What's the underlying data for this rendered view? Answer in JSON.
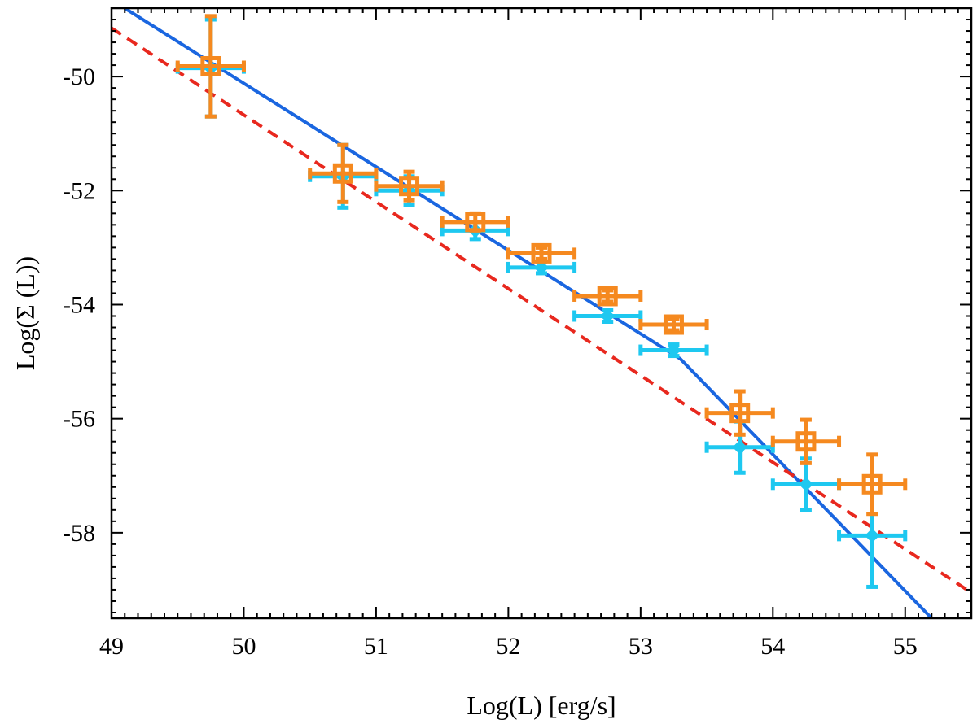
{
  "chart_data": {
    "type": "scatter",
    "title": "",
    "xlabel": "Log(L) [erg/s]",
    "ylabel": "Log(Σ (L))",
    "xlim": [
      49,
      55.5
    ],
    "ylim": [
      -59.5,
      -48.8
    ],
    "xticks": [
      "49",
      "50",
      "51",
      "52",
      "53",
      "54",
      "55"
    ],
    "yticks": [
      "-50",
      "-52",
      "-54",
      "-56",
      "-58"
    ],
    "grid": false,
    "colors": {
      "cyan_series": "#1ec8f0",
      "orange_series": "#f5891f",
      "blue_fit": "#1a66e0",
      "red_fit": "#e8281e"
    },
    "series": [
      {
        "marker": "diamond",
        "points": [
          {
            "x": 49.75,
            "y": -49.85,
            "xerr": 0.25,
            "yerr": 0.85
          },
          {
            "x": 50.75,
            "y": -51.75,
            "xerr": 0.25,
            "yerr": 0.55
          },
          {
            "x": 51.25,
            "y": -52.0,
            "xerr": 0.25,
            "yerr": 0.25
          },
          {
            "x": 51.75,
            "y": -52.7,
            "xerr": 0.25,
            "yerr": 0.15
          },
          {
            "x": 52.25,
            "y": -53.35,
            "xerr": 0.25,
            "yerr": 0.1
          },
          {
            "x": 52.75,
            "y": -54.2,
            "xerr": 0.25,
            "yerr": 0.1
          },
          {
            "x": 53.25,
            "y": -54.8,
            "xerr": 0.25,
            "yerr": 0.1
          },
          {
            "x": 53.75,
            "y": -56.5,
            "xerr": 0.25,
            "yerr": 0.45
          },
          {
            "x": 54.25,
            "y": -57.15,
            "xerr": 0.25,
            "yerr": 0.45
          },
          {
            "x": 54.75,
            "y": -58.05,
            "xerr": 0.25,
            "yerr": 0.9
          }
        ]
      },
      {
        "marker": "square",
        "points": [
          {
            "x": 49.75,
            "y": -49.82,
            "xerr": 0.25,
            "yerr": 0.88
          },
          {
            "x": 50.75,
            "y": -51.7,
            "xerr": 0.25,
            "yerr": 0.5
          },
          {
            "x": 51.25,
            "y": -51.92,
            "xerr": 0.25,
            "yerr": 0.25
          },
          {
            "x": 51.75,
            "y": -52.55,
            "xerr": 0.25,
            "yerr": 0.15
          },
          {
            "x": 52.25,
            "y": -53.1,
            "xerr": 0.25,
            "yerr": 0.1
          },
          {
            "x": 52.75,
            "y": -53.85,
            "xerr": 0.25,
            "yerr": 0.1
          },
          {
            "x": 53.25,
            "y": -54.35,
            "xerr": 0.25,
            "yerr": 0.1
          },
          {
            "x": 53.75,
            "y": -55.9,
            "xerr": 0.25,
            "yerr": 0.38
          },
          {
            "x": 54.25,
            "y": -56.4,
            "xerr": 0.25,
            "yerr": 0.38
          },
          {
            "x": 54.75,
            "y": -57.15,
            "xerr": 0.25,
            "yerr": 0.52
          }
        ]
      }
    ],
    "lines": [
      {
        "style": "solid",
        "points": [
          [
            49.1,
            -48.8
          ],
          [
            53.3,
            -54.95
          ],
          [
            55.2,
            -59.5
          ]
        ]
      },
      {
        "style": "dashed",
        "points": [
          [
            49.0,
            -49.15
          ],
          [
            55.5,
            -59.05
          ]
        ]
      }
    ]
  }
}
